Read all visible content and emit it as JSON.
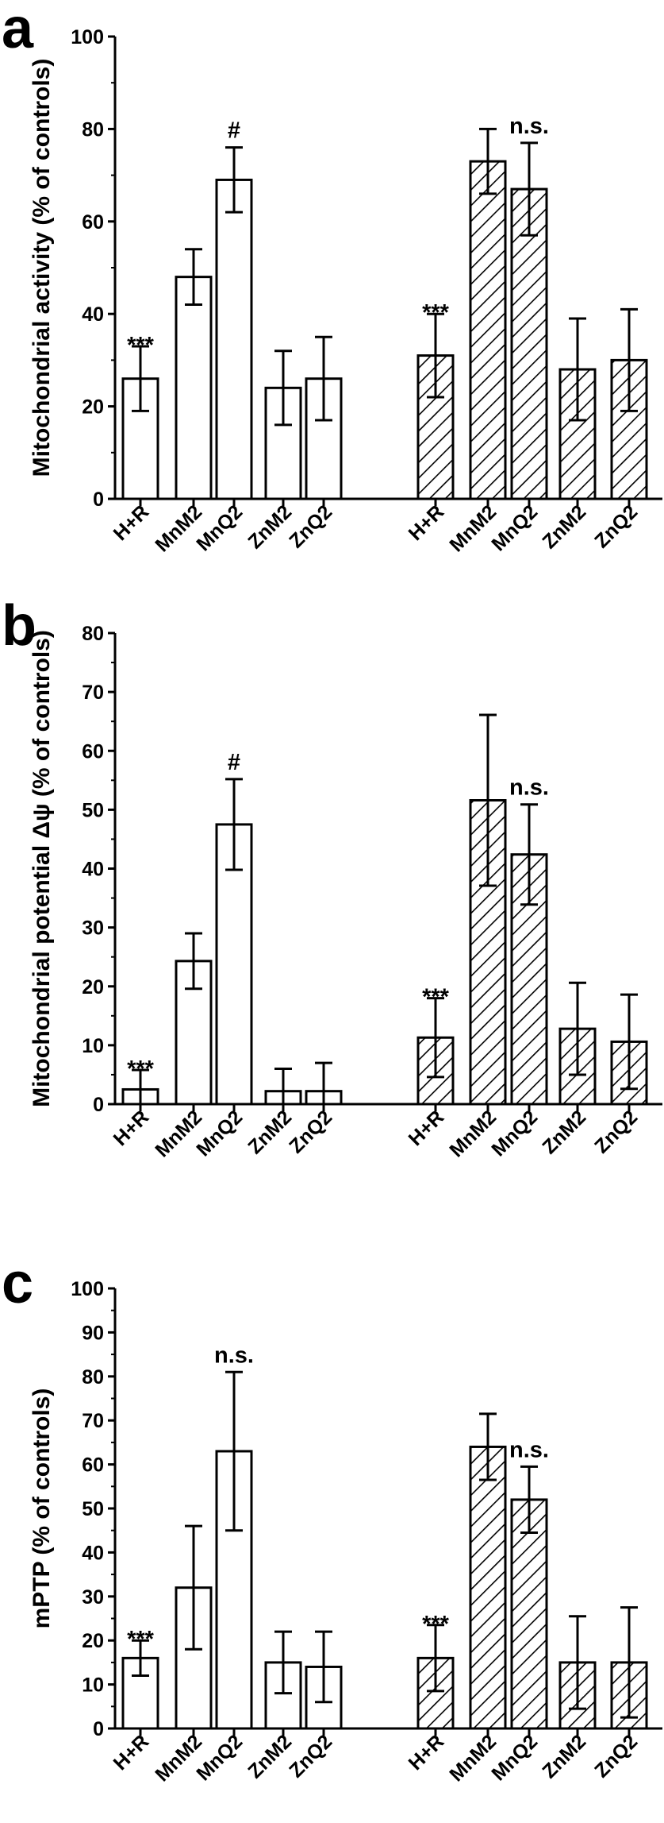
{
  "colors": {
    "ink": "#000000",
    "fill": "#ffffff",
    "hatch": "#000000"
  },
  "chart_data": [
    {
      "type": "bar",
      "panel_label": "a",
      "ylabel": "Mitochondrial activity (% of controls)",
      "ylim": [
        0,
        100
      ],
      "yticks": [
        0,
        20,
        40,
        60,
        80,
        100
      ],
      "groups": [
        {
          "name": "open",
          "pattern": "none",
          "categories": [
            "H+R",
            "MnM2",
            "MnQ2",
            "ZnM2",
            "ZnQ2"
          ],
          "values": [
            26,
            48,
            69,
            24,
            26
          ],
          "errors": [
            7,
            6,
            7,
            8,
            9
          ],
          "annotations": [
            "***",
            "",
            "#",
            "",
            ""
          ]
        },
        {
          "name": "hatched",
          "pattern": "hatch",
          "categories": [
            "H+R",
            "MnM2",
            "MnQ2",
            "ZnM2",
            "ZnQ2"
          ],
          "values": [
            31,
            73,
            67,
            28,
            30
          ],
          "errors": [
            9,
            7,
            10,
            11,
            11
          ],
          "annotations": [
            "***",
            "",
            "n.s.",
            "",
            ""
          ]
        }
      ]
    },
    {
      "type": "bar",
      "panel_label": "b",
      "ylabel": "Mitochondrial potential Δψ (% of controls)",
      "ylim": [
        0,
        80
      ],
      "yticks": [
        0,
        10,
        20,
        30,
        40,
        50,
        60,
        70,
        80
      ],
      "groups": [
        {
          "name": "open",
          "pattern": "none",
          "categories": [
            "H+R",
            "MnM2",
            "MnQ2",
            "ZnM2",
            "ZnQ2"
          ],
          "values": [
            2.5,
            24.3,
            47.5,
            2.2,
            2.2
          ],
          "errors": [
            3.3,
            4.7,
            7.7,
            3.8,
            4.8
          ],
          "annotations": [
            "***",
            "",
            "#",
            "",
            ""
          ]
        },
        {
          "name": "hatched",
          "pattern": "hatch",
          "categories": [
            "H+R",
            "MnM2",
            "MnQ2",
            "ZnM2",
            "ZnQ2"
          ],
          "values": [
            11.3,
            51.6,
            42.4,
            12.8,
            10.6
          ],
          "errors": [
            6.7,
            14.5,
            8.5,
            7.8,
            8.0
          ],
          "annotations": [
            "***",
            "",
            "n.s.",
            "",
            ""
          ]
        }
      ]
    },
    {
      "type": "bar",
      "panel_label": "c",
      "ylabel": "mPTP (% of controls)",
      "ylim": [
        0,
        100
      ],
      "yticks": [
        0,
        10,
        20,
        30,
        40,
        50,
        60,
        70,
        80,
        90,
        100
      ],
      "groups": [
        {
          "name": "open",
          "pattern": "none",
          "categories": [
            "H+R",
            "MnM2",
            "MnQ2",
            "ZnM2",
            "ZnQ2"
          ],
          "values": [
            16,
            32,
            63,
            15,
            14
          ],
          "errors": [
            4,
            14,
            18,
            7,
            8
          ],
          "annotations": [
            "***",
            "",
            "n.s.",
            "",
            ""
          ]
        },
        {
          "name": "hatched",
          "pattern": "hatch",
          "categories": [
            "H+R",
            "MnM2",
            "MnQ2",
            "ZnM2",
            "ZnQ2"
          ],
          "values": [
            16,
            64,
            52,
            15,
            15
          ],
          "errors": [
            7.5,
            7.5,
            7.5,
            10.5,
            12.5
          ],
          "annotations": [
            "***",
            "",
            "n.s.",
            "",
            ""
          ]
        }
      ]
    }
  ]
}
